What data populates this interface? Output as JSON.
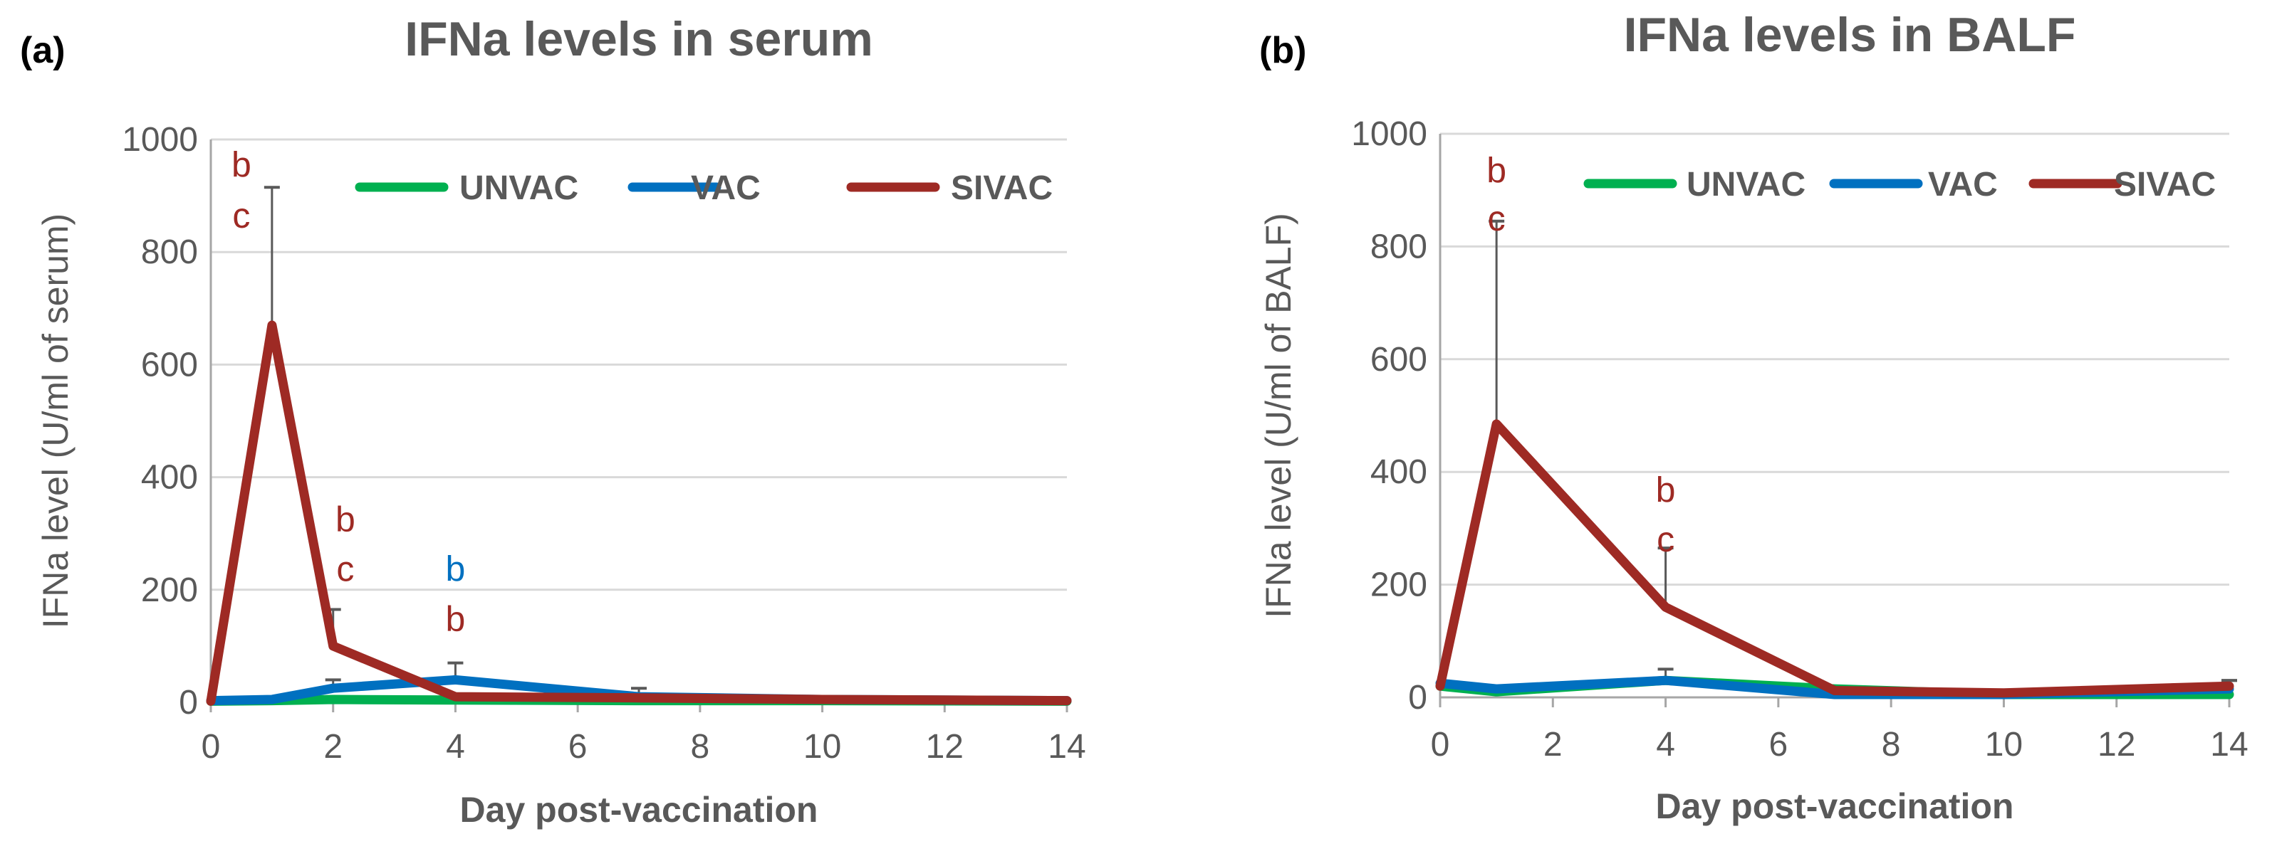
{
  "chart_data": [
    {
      "type": "line",
      "panel_label": "(a)",
      "title": "IFNa levels in serum",
      "xlabel": "Day post-vaccination",
      "ylabel": "IFNa level (U/ml of serum)",
      "xlim": [
        0,
        14
      ],
      "ylim": [
        0,
        1000
      ],
      "xticks": [
        "0",
        "2",
        "4",
        "6",
        "8",
        "10",
        "12",
        "14"
      ],
      "yticks": [
        "0",
        "200",
        "400",
        "600",
        "800",
        "1000"
      ],
      "grid": true,
      "legend_position": "top-right",
      "series": [
        {
          "name": "UNVAC",
          "color": "#00b050",
          "points": [
            [
              0,
              2
            ],
            [
              1,
              3
            ],
            [
              2,
              5
            ],
            [
              4,
              4
            ],
            [
              7,
              3
            ],
            [
              10,
              3
            ],
            [
              14,
              2
            ]
          ],
          "errors": [
            0,
            0,
            0,
            0,
            0,
            0,
            0
          ]
        },
        {
          "name": "VAC",
          "color": "#0070c0",
          "points": [
            [
              0,
              3
            ],
            [
              1,
              5
            ],
            [
              2,
              25
            ],
            [
              4,
              40
            ],
            [
              7,
              10
            ],
            [
              10,
              5
            ],
            [
              14,
              3
            ]
          ],
          "errors": [
            0,
            0,
            15,
            30,
            15,
            5,
            0
          ]
        },
        {
          "name": "SIVAC",
          "color": "#9e2a24",
          "points": [
            [
              0,
              2
            ],
            [
              1,
              670
            ],
            [
              2,
              100
            ],
            [
              4,
              10
            ],
            [
              7,
              8
            ],
            [
              10,
              5
            ],
            [
              14,
              3
            ]
          ],
          "errors": [
            0,
            245,
            65,
            0,
            0,
            0,
            0
          ]
        }
      ],
      "annotations": [
        {
          "text": "b",
          "x": 0.5,
          "y": 955,
          "color": "#9e2a24"
        },
        {
          "text": "c",
          "x": 0.5,
          "y": 865,
          "color": "#9e2a24"
        },
        {
          "text": "b",
          "x": 2.2,
          "y": 325,
          "color": "#9e2a24"
        },
        {
          "text": "c",
          "x": 2.2,
          "y": 237,
          "color": "#9e2a24"
        },
        {
          "text": "b",
          "x": 4.0,
          "y": 237,
          "color": "#0070c0"
        },
        {
          "text": "b",
          "x": 4.0,
          "y": 148,
          "color": "#9e2a24"
        }
      ]
    },
    {
      "type": "line",
      "panel_label": "(b)",
      "title": "IFNa levels in BALF",
      "xlabel": "Day post-vaccination",
      "ylabel": "IFNa level (U/ml of BALF)",
      "xlim": [
        0,
        14
      ],
      "ylim": [
        0,
        1000
      ],
      "xticks": [
        "0",
        "2",
        "4",
        "6",
        "8",
        "10",
        "12",
        "14"
      ],
      "yticks": [
        "0",
        "200",
        "400",
        "600",
        "800",
        "1000"
      ],
      "grid": true,
      "legend_position": "top-right",
      "series": [
        {
          "name": "UNVAC",
          "color": "#00b050",
          "points": [
            [
              0,
              20
            ],
            [
              1,
              10
            ],
            [
              4,
              30
            ],
            [
              7,
              15
            ],
            [
              10,
              5
            ],
            [
              14,
              5
            ]
          ],
          "errors": [
            0,
            0,
            0,
            0,
            0,
            0
          ]
        },
        {
          "name": "VAC",
          "color": "#0070c0",
          "points": [
            [
              0,
              25
            ],
            [
              1,
              15
            ],
            [
              4,
              30
            ],
            [
              7,
              5
            ],
            [
              10,
              5
            ],
            [
              14,
              15
            ]
          ],
          "errors": [
            0,
            5,
            20,
            0,
            5,
            15
          ]
        },
        {
          "name": "SIVAC",
          "color": "#9e2a24",
          "points": [
            [
              0,
              20
            ],
            [
              1,
              485
            ],
            [
              4,
              160
            ],
            [
              7,
              12
            ],
            [
              10,
              8
            ],
            [
              14,
              20
            ]
          ],
          "errors": [
            0,
            360,
            105,
            8,
            5,
            10
          ]
        }
      ],
      "annotations": [
        {
          "text": "b",
          "x": 1.0,
          "y": 935,
          "color": "#9e2a24"
        },
        {
          "text": "c",
          "x": 1.0,
          "y": 850,
          "color": "#9e2a24"
        },
        {
          "text": "b",
          "x": 4.0,
          "y": 368,
          "color": "#9e2a24"
        },
        {
          "text": "c",
          "x": 4.0,
          "y": 280,
          "color": "#9e2a24"
        }
      ]
    }
  ]
}
